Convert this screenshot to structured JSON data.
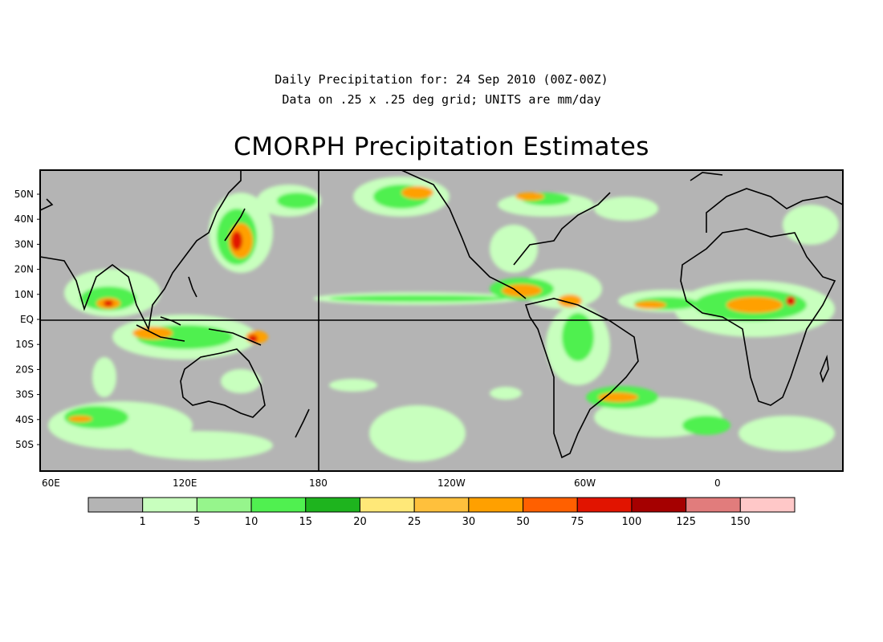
{
  "header": {
    "line1": "Daily Precipitation for: 24 Sep 2010 (00Z-00Z)",
    "line2": "Data on .25 x .25 deg grid; UNITS are mm/day",
    "title": "CMORPH Precipitation Estimates"
  },
  "map": {
    "lon_labels": [
      "60E",
      "120E",
      "180",
      "120W",
      "60W",
      "0"
    ],
    "lat_labels": [
      "50N",
      "40N",
      "30N",
      "20N",
      "10N",
      "EQ",
      "10S",
      "20S",
      "30S",
      "40S",
      "50S"
    ],
    "colors": {
      "no_rain": "#b4b4b4",
      "coast": "#000000"
    }
  },
  "legend": {
    "labels": [
      "1",
      "5",
      "10",
      "15",
      "20",
      "25",
      "30",
      "50",
      "75",
      "100",
      "125",
      "150"
    ],
    "colors": [
      "#b4b4b4",
      "#c8ffbe",
      "#96f58c",
      "#50f050",
      "#1eb41e",
      "#ffe878",
      "#ffc03c",
      "#ffa000",
      "#ff6000",
      "#e11400",
      "#a50000",
      "#e17c7c",
      "#ffc8c8"
    ]
  }
}
